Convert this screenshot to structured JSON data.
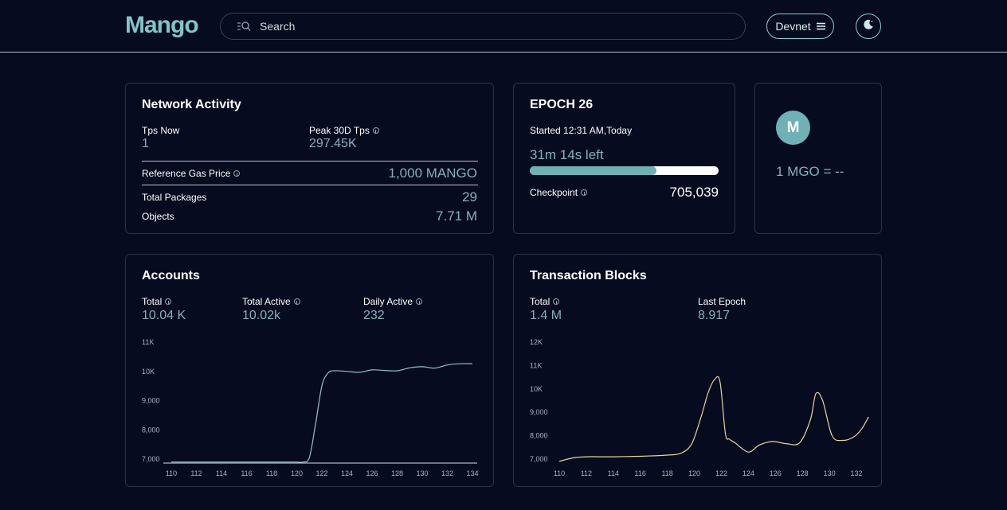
{
  "header": {
    "logo_text": "Mango",
    "search_placeholder": "Search",
    "network_label": "Devnet"
  },
  "network_activity": {
    "title": "Network Activity",
    "tps_now_label": "Tps Now",
    "tps_now_value": "1",
    "peak_label": "Peak 30D Tps",
    "peak_value": "297.45K",
    "gas_label": "Reference Gas Price",
    "gas_value": "1,000 MANGO",
    "packages_label": "Total Packages",
    "packages_value": "29",
    "objects_label": "Objects",
    "objects_value": "7.71 M"
  },
  "epoch": {
    "title": "EPOCH 26",
    "started": "Started 12:31 AM,Today",
    "time_left": "31m 14s left",
    "progress": 0.67,
    "checkpoint_label": "Checkpoint",
    "checkpoint_value": "705,039"
  },
  "price": {
    "badge": "M",
    "text": "1 MGO = --"
  },
  "accounts": {
    "title": "Accounts",
    "total_label": "Total",
    "total_value": "10.04 K",
    "total_active_label": "Total Active",
    "total_active_value": "10.02k",
    "daily_active_label": "Daily Active",
    "daily_active_value": "232"
  },
  "transactions": {
    "title": "Transaction Blocks",
    "total_label": "Total",
    "total_value": "1.4 M",
    "last_epoch_label": "Last Epoch",
    "last_epoch_value": "8.917"
  },
  "colors": {
    "accent": "#7fc6c6",
    "accounts_line": "#8fc4cc",
    "tx_line": "#e8d49a"
  },
  "chart_data": [
    {
      "type": "line",
      "x": [
        110,
        111,
        112,
        113,
        114,
        115,
        116,
        117,
        118,
        119,
        120,
        120.5,
        121,
        121.5,
        122,
        122.5,
        123,
        124,
        125,
        126,
        127,
        128,
        129,
        130,
        131,
        132,
        133,
        134
      ],
      "y": [
        6900,
        6900,
        6900,
        6900,
        6900,
        6900,
        6900,
        6900,
        6900,
        6900,
        6900,
        6900,
        7050,
        8200,
        9500,
        9950,
        10020,
        10000,
        9970,
        10050,
        10030,
        10020,
        10120,
        10160,
        10110,
        10220,
        10260,
        10260
      ],
      "xticks": [
        "110",
        "112",
        "114",
        "116",
        "118",
        "120",
        "122",
        "124",
        "126",
        "128",
        "130",
        "132",
        "134"
      ],
      "yticks": [
        "7,000",
        "8,000",
        "9,000",
        "10K",
        "11K"
      ],
      "ylim": [
        7000,
        11000
      ]
    },
    {
      "type": "line",
      "x": [
        110,
        111,
        112,
        113,
        114,
        115,
        116,
        117,
        118,
        119,
        119.8,
        120.5,
        121,
        121.5,
        121.9,
        122.3,
        122.6,
        123,
        124,
        124.8,
        125.8,
        126.8,
        127.8,
        128.6,
        129,
        129.5,
        130.2,
        131,
        131.8,
        132.4,
        132.9
      ],
      "y": [
        6900,
        7050,
        7100,
        7100,
        7100,
        7110,
        7120,
        7140,
        7170,
        7250,
        7650,
        8800,
        9800,
        10400,
        10300,
        8100,
        7850,
        7700,
        7300,
        7600,
        7750,
        7660,
        7700,
        8700,
        9800,
        9500,
        8000,
        7800,
        7950,
        8300,
        8800
      ],
      "xticks": [
        "110",
        "112",
        "114",
        "116",
        "118",
        "120",
        "122",
        "124",
        "126",
        "128",
        "130",
        "132"
      ],
      "yticks": [
        "7,000",
        "8,000",
        "9,000",
        "10K",
        "11K",
        "12K"
      ],
      "ylim": [
        7000,
        12000
      ]
    }
  ]
}
